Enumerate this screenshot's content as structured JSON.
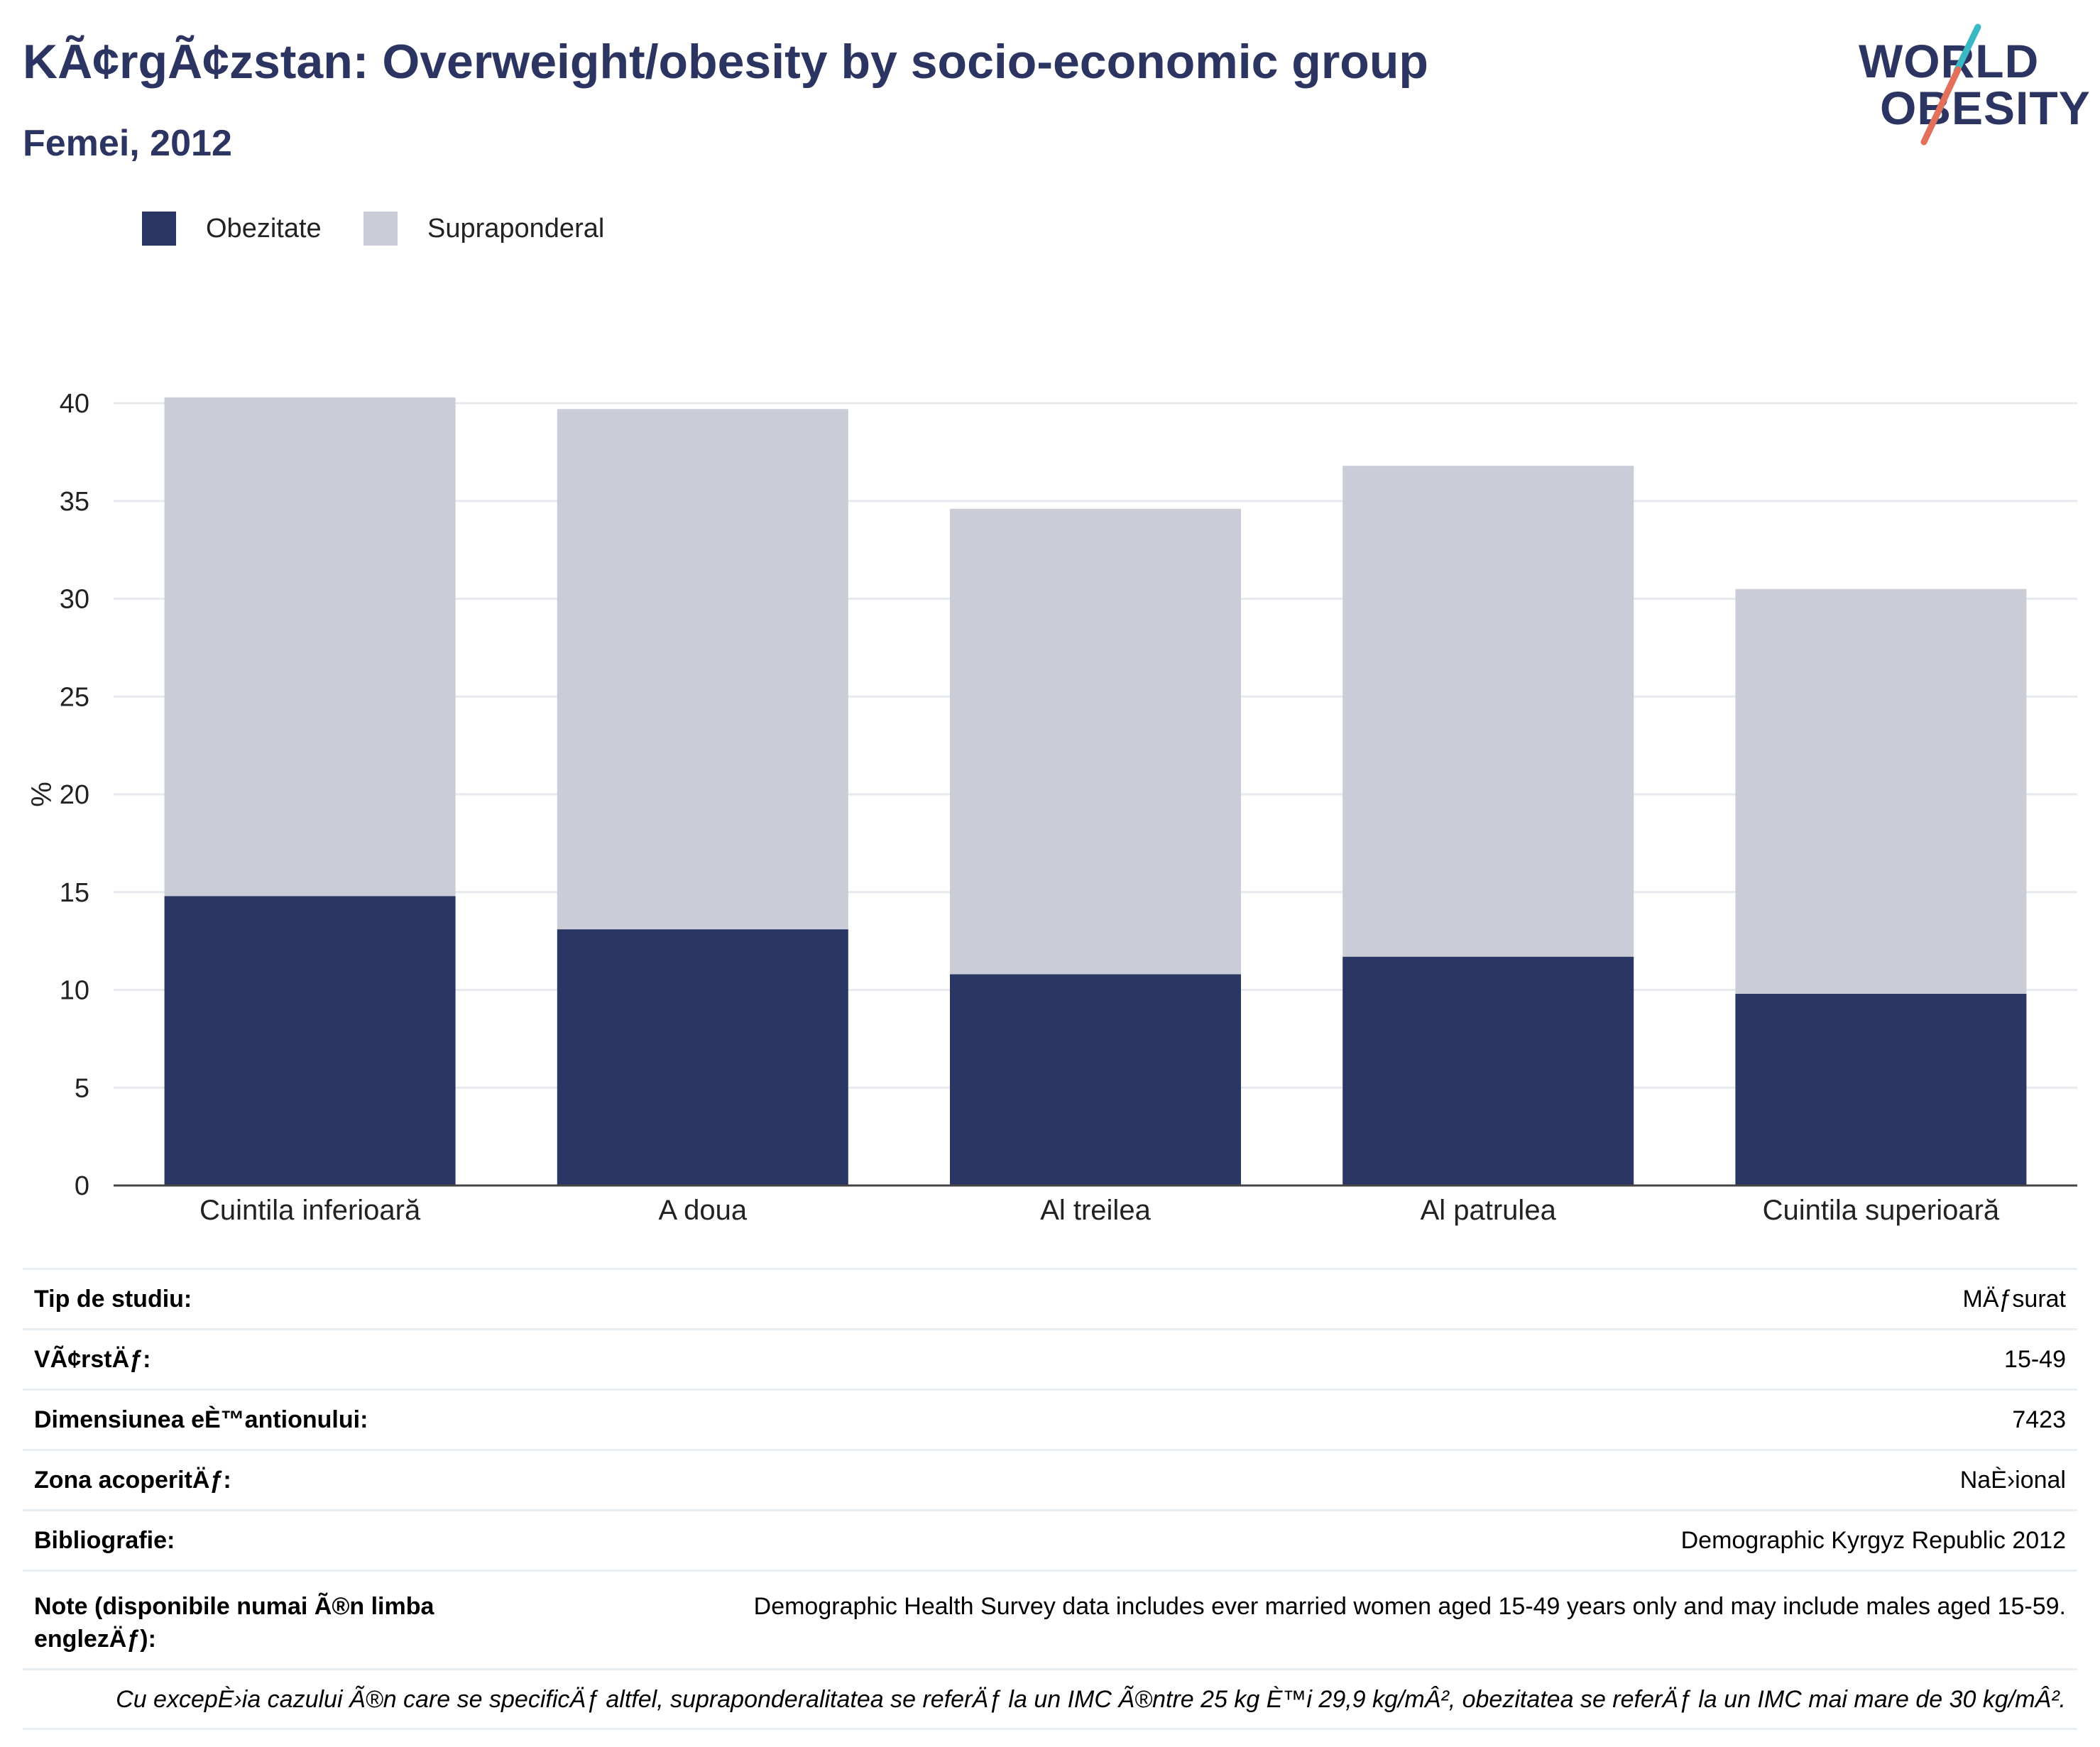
{
  "header": {
    "title": "KÃ¢rgÃ¢zstan: Overweight/obesity by socio-economic group",
    "subtitle": "Femei, 2012"
  },
  "logo": {
    "line1": "WORLD",
    "line2": "OBESITY"
  },
  "colors": {
    "obesity": "#2a3764",
    "overweight": "#cacdd8",
    "title": "#2c3562",
    "logo_slash_top": "#3ab9c4",
    "logo_slash_bottom": "#e2705a",
    "grid": "#e6e9ee",
    "axis": "#444444"
  },
  "chart_data": {
    "type": "bar",
    "stacked": true,
    "categories": [
      "Cuintila inferioară",
      "A doua",
      "Al treilea",
      "Al patrulea",
      "Cuintila superioară"
    ],
    "series": [
      {
        "name": "Obezitate",
        "values": [
          14.8,
          13.1,
          10.8,
          11.7,
          9.8
        ]
      },
      {
        "name": "Supraponderal",
        "values": [
          25.5,
          26.6,
          23.8,
          25.1,
          20.7
        ]
      }
    ],
    "ylabel": "%",
    "xlabel": "",
    "ylim": [
      0,
      40
    ],
    "yticks": [
      0,
      5,
      10,
      15,
      20,
      25,
      30,
      35,
      40
    ],
    "grid": true,
    "legend_position": "top-left"
  },
  "info": {
    "rows": [
      {
        "label": "Tip de studiu:",
        "value": "MÄƒsurat"
      },
      {
        "label": "VÃ¢rstÄƒ:",
        "value": "15-49"
      },
      {
        "label": "Dimensiunea eÈ™antionului:",
        "value": "7423"
      },
      {
        "label": "Zona acoperitÄƒ:",
        "value": "NaÈ›ional"
      },
      {
        "label": "Bibliografie:",
        "value": "Demographic Kyrgyz Republic 2012"
      }
    ],
    "note_label": "Note (disponibile numai Ã®n limba englezÄƒ):",
    "note_value": "Demographic Health Survey data includes ever married women aged 15-49 years only and may include males aged 15-59.",
    "footnote": "Cu excepÈ›ia cazului Ã®n care se specificÄƒ altfel, supraponderalitatea se referÄƒ la un IMC Ã®ntre 25 kg È™i 29,9 kg/mÂ², obezitatea se referÄƒ la un IMC mai mare de 30 kg/mÂ²."
  }
}
